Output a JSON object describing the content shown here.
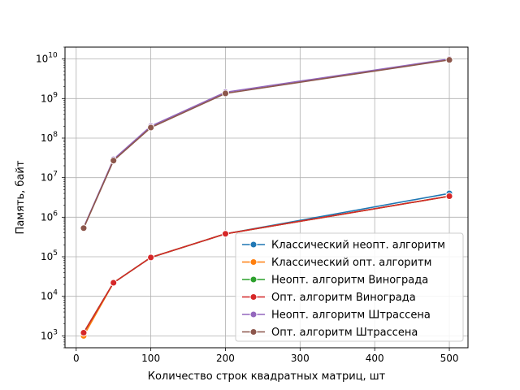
{
  "chart_data": {
    "type": "line",
    "title": "",
    "xlabel": "Количество строк квадратных матриц, шт",
    "ylabel": "Память, байт",
    "x": [
      10,
      50,
      100,
      200,
      500
    ],
    "xlim": [
      -15,
      525
    ],
    "ylim": [
      500,
      20000000000
    ],
    "yscale": "log",
    "x_ticks": [
      0,
      100,
      200,
      300,
      400,
      500
    ],
    "y_ticks": [
      {
        "value": 1000,
        "base": "10",
        "exp": "3"
      },
      {
        "value": 10000,
        "base": "10",
        "exp": "4"
      },
      {
        "value": 100000,
        "base": "10",
        "exp": "5"
      },
      {
        "value": 1000000,
        "base": "10",
        "exp": "6"
      },
      {
        "value": 10000000,
        "base": "10",
        "exp": "7"
      },
      {
        "value": 100000000,
        "base": "10",
        "exp": "8"
      },
      {
        "value": 1000000000,
        "base": "10",
        "exp": "9"
      },
      {
        "value": 10000000000,
        "base": "10",
        "exp": "10"
      }
    ],
    "grid": true,
    "legend_position": "lower-right",
    "series": [
      {
        "name": "Классический неопт. алгоритм",
        "color": "#1f77b4",
        "values": [
          1200,
          22000,
          96000,
          380000,
          4000000
        ]
      },
      {
        "name": "Классический опт. алгоритм",
        "color": "#ff7f0e",
        "values": [
          1000,
          22000,
          96000,
          380000,
          3400000
        ]
      },
      {
        "name": "Неопт. алгоритм Винограда",
        "color": "#2ca02c",
        "values": [
          1200,
          22000,
          96000,
          380000,
          3400000
        ]
      },
      {
        "name": "Опт. алгоритм Винограда",
        "color": "#d62728",
        "values": [
          1200,
          22000,
          96000,
          380000,
          3400000
        ]
      },
      {
        "name": "Неопт. алгоритм Штрассена",
        "color": "#9467bd",
        "values": [
          550000,
          29000000,
          200000000,
          1450000000,
          10000000000
        ]
      },
      {
        "name": "Опт. алгоритм Штрассена",
        "color": "#8c564b",
        "values": [
          530000,
          27000000,
          185000000,
          1350000000,
          9500000000
        ]
      }
    ]
  }
}
